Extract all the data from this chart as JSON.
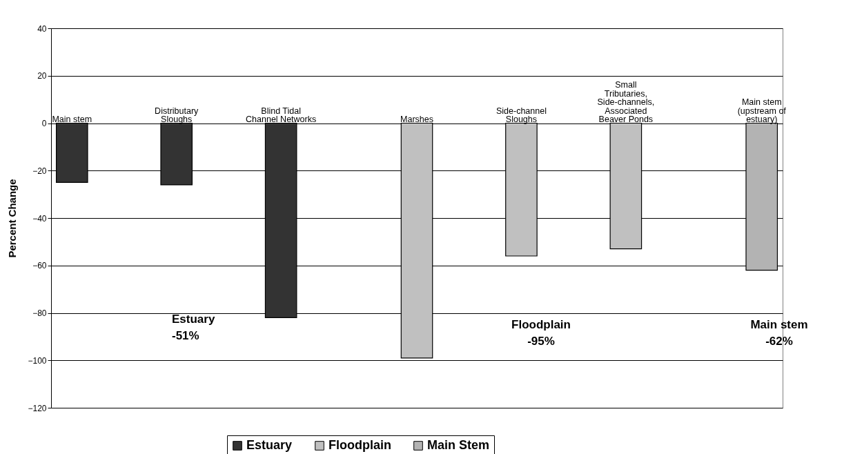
{
  "chart_data": {
    "type": "bar",
    "ylabel": "Percent Change",
    "categories": [
      "Main stem",
      "Distributary Sloughs",
      "Blind Tidal Channel Networks",
      "Marshes",
      "Side-channel Sloughs",
      "Small Tributaries, Side-channels, Associated Beaver Ponds",
      "Main stem (upstream of estuary)"
    ],
    "series": [
      {
        "name": "Estuary",
        "color": "#333333",
        "values": [
          -25,
          -26,
          -82,
          null,
          null,
          null,
          null
        ]
      },
      {
        "name": "Floodplain",
        "color": "#c0c0c0",
        "values": [
          null,
          null,
          null,
          -99,
          -56,
          -53,
          null
        ]
      },
      {
        "name": "Main Stem",
        "color": "#b3b3b3",
        "values": [
          null,
          null,
          null,
          null,
          null,
          null,
          -62
        ]
      }
    ],
    "ylim": [
      -120,
      40
    ],
    "yticks": [
      -120,
      -100,
      -80,
      -60,
      -40,
      -20,
      0,
      20,
      40
    ],
    "grid": "y",
    "legend": "bottom",
    "annotations": [
      "Estuary -51%",
      "Floodplain -95%",
      "Main stem -62%"
    ]
  }
}
